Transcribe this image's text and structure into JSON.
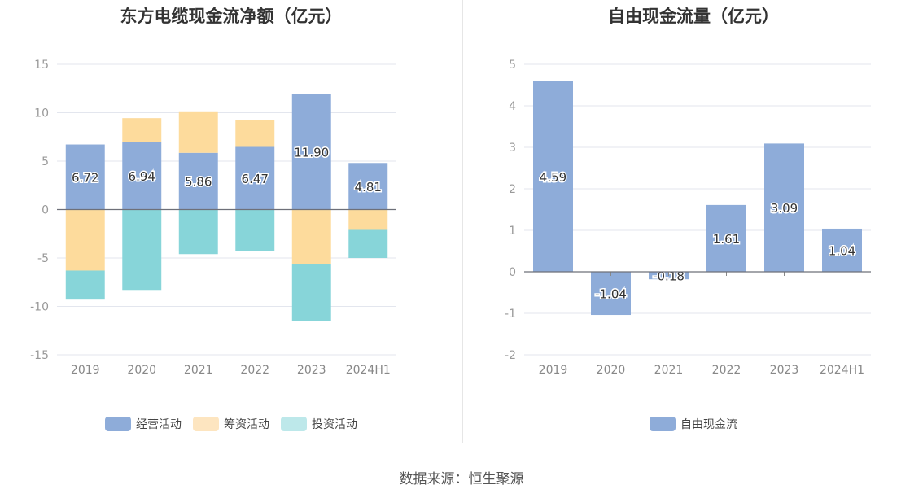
{
  "source": "数据来源：恒生聚源",
  "chart_data": [
    {
      "type": "bar",
      "stacked": true,
      "title": "东方电缆现金流净额（亿元）",
      "categories": [
        "2019",
        "2020",
        "2021",
        "2022",
        "2023",
        "2024H1"
      ],
      "ylim": [
        -15,
        15
      ],
      "yticks": [
        15,
        10,
        5,
        0,
        -5,
        -10,
        -15
      ],
      "grid": true,
      "legend_position": "bottom",
      "series": [
        {
          "name": "经营活动",
          "color": "#8eacd9",
          "values": [
            6.72,
            6.94,
            5.86,
            6.47,
            11.9,
            4.81
          ],
          "labels": [
            "6.72",
            "6.94",
            "5.86",
            "6.47",
            "11.90",
            "4.81"
          ]
        },
        {
          "name": "筹资活动",
          "color": "#fddb9c",
          "values": [
            -6.3,
            2.5,
            4.2,
            2.8,
            -5.6,
            -2.1
          ]
        },
        {
          "name": "投资活动",
          "color": "#87d5d9",
          "values": [
            -3.0,
            -8.3,
            -4.6,
            -4.3,
            -5.9,
            -2.9
          ]
        }
      ],
      "legend_colors": [
        "#8eacd9",
        "#fde5c0",
        "#bde8ea"
      ]
    },
    {
      "type": "bar",
      "title": "自由现金流量（亿元）",
      "categories": [
        "2019",
        "2020",
        "2021",
        "2022",
        "2023",
        "2024H1"
      ],
      "ylim": [
        -2,
        5
      ],
      "yticks": [
        5,
        4,
        3,
        2,
        1,
        0,
        -1,
        -2
      ],
      "grid": true,
      "legend_position": "bottom",
      "series": [
        {
          "name": "自由现金流",
          "color": "#8eacd9",
          "values": [
            4.59,
            -1.04,
            -0.18,
            1.61,
            3.09,
            1.04
          ],
          "labels": [
            "4.59",
            "-1.04",
            "-0.18",
            "1.61",
            "3.09",
            "1.04"
          ]
        }
      ],
      "legend_colors": [
        "#8eacd9"
      ]
    }
  ]
}
